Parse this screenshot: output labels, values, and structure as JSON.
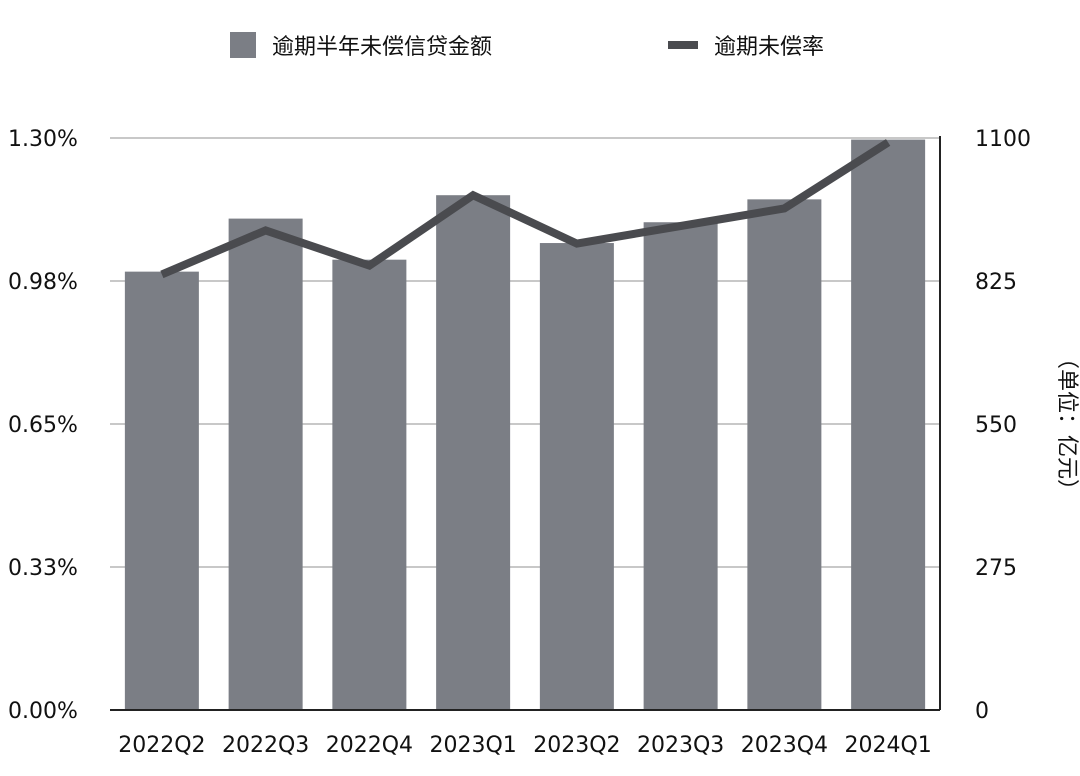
{
  "chart_data": {
    "type": "bar",
    "categories": [
      "2022Q2",
      "2022Q3",
      "2022Q4",
      "2023Q1",
      "2023Q2",
      "2023Q3",
      "2023Q4",
      "2024Q1"
    ],
    "series": [
      {
        "name": "逾期半年未偿信贷金额",
        "type": "bar",
        "axis": "right",
        "values": [
          843,
          945,
          866,
          990,
          898,
          938,
          982,
          1097
        ]
      },
      {
        "name": "逾期未偿率",
        "type": "line",
        "axis": "left",
        "values": [
          0.99,
          1.09,
          1.01,
          1.17,
          1.06,
          1.1,
          1.14,
          1.29
        ]
      }
    ],
    "left_axis": {
      "ticks": [
        "0.00%",
        "0.33%",
        "0.65%",
        "0.98%",
        "1.30%"
      ],
      "ylim": [
        0,
        1.3
      ]
    },
    "right_axis": {
      "ticks": [
        "0",
        "275",
        "550",
        "825",
        "1100"
      ],
      "ylim": [
        0,
        1100
      ],
      "label": "（单位：亿元）"
    },
    "legend": {
      "position": "top-center",
      "items": [
        "逾期半年未偿信贷金额",
        "逾期未偿率"
      ]
    },
    "grid": true,
    "colors": {
      "bar": "#7b7e85",
      "line": "#4a4b4f",
      "grid": "#c8c8c8",
      "axis": "#222222"
    }
  }
}
